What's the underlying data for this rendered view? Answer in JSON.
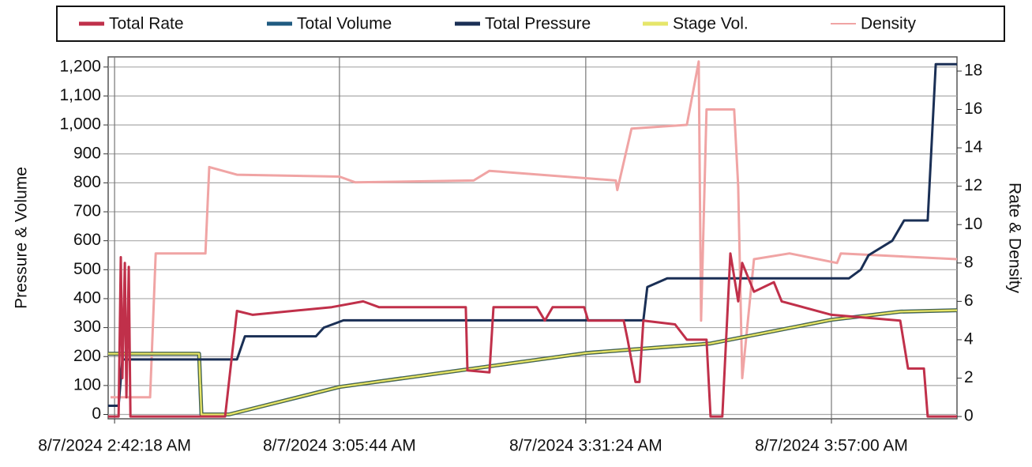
{
  "chart_data": {
    "type": "line",
    "ylabel": "Pressure & Volume",
    "y2label": "Rate & Density",
    "grid": true,
    "legend": "top",
    "xlim": [
      "2024-08-07T02:41:38",
      "2024-08-07T04:10:05"
    ],
    "xticks": [
      {
        "value": "2024-08-07T02:42:18",
        "label": "8/7/2024 2:42:18 AM"
      },
      {
        "value": "2024-08-07T03:05:44",
        "label": "8/7/2024 3:05:44 AM"
      },
      {
        "value": "2024-08-07T03:31:24",
        "label": "8/7/2024 3:31:24 AM"
      },
      {
        "value": "2024-08-07T03:57:00",
        "label": "8/7/2024 3:57:00 AM"
      }
    ],
    "ylim": [
      -15,
      1235
    ],
    "yticks": [
      0,
      100,
      200,
      300,
      400,
      500,
      600,
      700,
      800,
      900,
      {
        "value": 1000,
        "label": "1,000"
      },
      {
        "value": 1100,
        "label": "1,100"
      },
      {
        "value": 1200,
        "label": "1,200"
      }
    ],
    "y2lim": [
      -0.12,
      18.74
    ],
    "y2ticks": [
      0,
      2,
      4,
      6,
      8,
      10,
      12,
      14,
      16,
      18
    ],
    "series": [
      {
        "name": "Total Rate",
        "color": "#c0304a",
        "axis": "y2",
        "x": [
          "2024-08-07T02:41:38",
          "2024-08-07T02:42:43",
          "2024-08-07T02:42:57",
          "2024-08-07T02:43:07",
          "2024-08-07T02:43:22",
          "2024-08-07T02:43:32",
          "2024-08-07T02:43:47",
          "2024-08-07T02:43:57",
          "2024-08-07T02:44:12",
          "2024-08-07T02:53:49",
          "2024-08-07T02:55:03",
          "2024-08-07T02:56:42",
          "2024-08-07T03:04:56",
          "2024-08-07T03:08:12",
          "2024-08-07T03:09:51",
          "2024-08-07T03:18:54",
          "2024-08-07T03:19:04",
          "2024-08-07T03:21:22",
          "2024-08-07T03:21:47",
          "2024-08-07T03:26:18",
          "2024-08-07T03:27:08",
          "2024-08-07T03:27:57",
          "2024-08-07T03:31:14",
          "2024-08-07T03:31:39",
          "2024-08-07T03:35:21",
          "2024-08-07T03:35:46",
          "2024-08-07T03:36:35",
          "2024-08-07T03:37:00",
          "2024-08-07T03:37:24",
          "2024-08-07T03:40:42",
          "2024-08-07T03:41:56",
          "2024-08-07T03:43:59",
          "2024-08-07T03:44:24",
          "2024-08-07T03:45:38",
          "2024-08-07T03:46:28",
          "2024-08-07T03:47:17",
          "2024-08-07T03:47:42",
          "2024-08-07T03:48:56",
          "2024-08-07T03:51:00",
          "2024-08-07T03:51:49",
          "2024-08-07T03:57:00",
          "2024-08-07T04:04:10",
          "2024-08-07T04:04:59",
          "2024-08-07T04:06:38",
          "2024-08-07T04:07:02",
          "2024-08-07T04:10:05"
        ],
        "values": [
          0,
          0,
          8.3,
          2,
          8,
          1,
          7.8,
          0,
          0,
          0,
          5.5,
          5.3,
          5.7,
          6,
          5.7,
          5.7,
          2.4,
          2.3,
          5.7,
          5.7,
          5.0,
          5.7,
          5.7,
          5.0,
          5.0,
          4.0,
          1.8,
          1.8,
          5.0,
          4.8,
          4.0,
          4.0,
          0,
          0,
          8.5,
          6,
          8,
          6.5,
          7,
          6,
          5.3,
          5,
          2.5,
          2.5,
          0,
          0
        ]
      },
      {
        "name": "Total Volume",
        "color": "#1f5a80",
        "x": [
          "2024-08-07T02:41:38",
          "2024-08-07T02:51:06",
          "2024-08-07T02:51:21",
          "2024-08-07T02:54:14",
          "2024-08-07T03:05:44",
          "2024-08-07T03:31:24",
          "2024-08-07T03:44:24",
          "2024-08-07T03:57:00",
          "2024-08-07T04:04:10",
          "2024-08-07T04:10:05"
        ],
        "values": [
          210,
          210,
          0,
          0,
          95,
          212,
          245,
          327,
          355,
          360
        ]
      },
      {
        "name": "Total Pressure",
        "color": "#1a2f55",
        "x": [
          "2024-08-07T02:41:38",
          "2024-08-07T02:42:43",
          "2024-08-07T02:43:07",
          "2024-08-07T02:55:03",
          "2024-08-07T02:55:53",
          "2024-08-07T03:03:17",
          "2024-08-07T03:04:06",
          "2024-08-07T03:06:09",
          "2024-08-07T03:37:24",
          "2024-08-07T03:37:49",
          "2024-08-07T03:39:53",
          "2024-08-07T03:58:49",
          "2024-08-07T04:00:03",
          "2024-08-07T04:00:52",
          "2024-08-07T04:03:20",
          "2024-08-07T04:04:34",
          "2024-08-07T04:07:02",
          "2024-08-07T04:07:52",
          "2024-08-07T04:10:05"
        ],
        "values": [
          30,
          30,
          190,
          190,
          270,
          270,
          300,
          325,
          325,
          440,
          470,
          470,
          500,
          550,
          600,
          670,
          670,
          1210,
          1210
        ]
      },
      {
        "name": "Stage Vol.",
        "color": "#e6e66a",
        "x": [
          "2024-08-07T02:41:38",
          "2024-08-07T02:51:06",
          "2024-08-07T02:51:21",
          "2024-08-07T02:54:14",
          "2024-08-07T03:05:44",
          "2024-08-07T03:31:24",
          "2024-08-07T03:44:24",
          "2024-08-07T03:57:00",
          "2024-08-07T04:04:10",
          "2024-08-07T04:10:05"
        ],
        "values": [
          210,
          210,
          0,
          0,
          95,
          212,
          245,
          327,
          355,
          360
        ]
      },
      {
        "name": "Density",
        "color": "#f0a4a4",
        "axis": "y2",
        "x": [
          "2024-08-07T02:41:53",
          "2024-08-07T02:46:00",
          "2024-08-07T02:46:35",
          "2024-08-07T02:51:46",
          "2024-08-07T02:52:10",
          "2024-08-07T02:55:03",
          "2024-08-07T03:05:44",
          "2024-08-07T03:07:23",
          "2024-08-07T03:19:43",
          "2024-08-07T03:21:22",
          "2024-08-07T03:34:32",
          "2024-08-07T03:34:41",
          "2024-08-07T03:36:10",
          "2024-08-07T03:41:56",
          "2024-08-07T03:43:10",
          "2024-08-07T03:43:25",
          "2024-08-07T03:43:59",
          "2024-08-07T03:46:52",
          "2024-08-07T03:47:17",
          "2024-08-07T03:47:42",
          "2024-08-07T03:48:56",
          "2024-08-07T03:52:38",
          "2024-08-07T03:57:35",
          "2024-08-07T03:57:59",
          "2024-08-07T04:10:05"
        ],
        "values": [
          1,
          1,
          8.5,
          8.5,
          13,
          12.6,
          12.5,
          12.2,
          12.3,
          12.8,
          12.3,
          11.8,
          15,
          15.2,
          18.5,
          5,
          16,
          16,
          12,
          2,
          8.2,
          8.5,
          8,
          8.5,
          8.2
        ]
      }
    ]
  }
}
